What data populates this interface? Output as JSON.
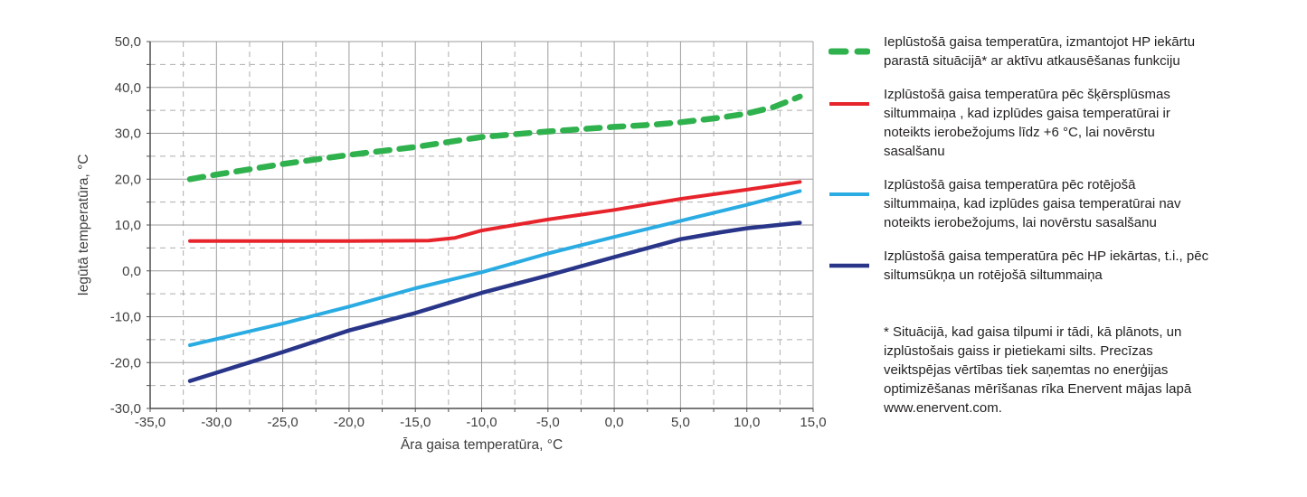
{
  "page": {
    "background": "#ffffff"
  },
  "chart": {
    "x_tick_labels": [
      "-35,0",
      "-30,0",
      "-25,0",
      "-20,0",
      "-15,0",
      "-10,0",
      "-5,0",
      "0,0",
      "5,0",
      "10,0",
      "15,0"
    ],
    "y_tick_labels": [
      "50,0",
      "40,0",
      "30,0",
      "20,0",
      "10,0",
      "0,0",
      "-10,0",
      "-20,0",
      "-30,0"
    ]
  },
  "chart_data": {
    "type": "line",
    "title": "",
    "xlabel": "Āra gaisa temperatūra, °C",
    "ylabel": "Iegūtā temperatūra, °C",
    "xlim": [
      -35,
      15
    ],
    "ylim": [
      -30,
      50
    ],
    "x_ticks": [
      -35,
      -30,
      -25,
      -20,
      -15,
      -10,
      -5,
      0,
      5,
      10,
      15
    ],
    "y_ticks": [
      50,
      40,
      30,
      20,
      10,
      0,
      -10,
      -20,
      -30
    ],
    "x_minor_step": 2.5,
    "y_minor_step": 5,
    "grid": "major solid, minor dashed",
    "legend_position": "right",
    "grid_major_color": "#9c9c9c",
    "grid_minor_color": "#aeaeae",
    "axis_color": "#4d4d4d",
    "tick_label_color": "#3f3f3f",
    "series": [
      {
        "name": "Ieplūstošā gaisa temperatūra, izmantojot HP iekārtu parastā situācijā* ar aktīvu atkausēšanas funkciju",
        "color": "#2fb14d",
        "style": "dashed",
        "width": 6.5,
        "points": [
          [
            -32,
            20
          ],
          [
            -30,
            21
          ],
          [
            -25,
            23.3
          ],
          [
            -20,
            25.3
          ],
          [
            -15,
            27
          ],
          [
            -10,
            29.2
          ],
          [
            -5,
            30.4
          ],
          [
            0,
            31.4
          ],
          [
            3,
            31.9
          ],
          [
            5,
            32.4
          ],
          [
            8,
            33.4
          ],
          [
            10,
            34.3
          ],
          [
            12,
            35.7
          ],
          [
            14,
            38
          ]
        ]
      },
      {
        "name": "Izplūstošā gaisa temperatūra pēc šķērsplūsmas siltummaiņa, kad izplūdes gaisa temperatūrai ir noteikts ierobežojums līdz +6 °C, lai novērstu sasalšanu",
        "color": "#e7242c",
        "style": "solid",
        "width": 4,
        "points": [
          [
            -32,
            6.5
          ],
          [
            -20,
            6.5
          ],
          [
            -14,
            6.6
          ],
          [
            -12,
            7.2
          ],
          [
            -10,
            8.8
          ],
          [
            -5,
            11.2
          ],
          [
            0,
            13.3
          ],
          [
            5,
            15.7
          ],
          [
            10,
            17.7
          ],
          [
            14,
            19.4
          ]
        ]
      },
      {
        "name": "Izplūstošā gaisa temperatūra pēc rotējošā siltummaiņa, kad izplūdes gaisa temperatūrai nav noteikts ierobežojums, lai novērstu sasalšanu",
        "color": "#2aace3",
        "style": "solid",
        "width": 4,
        "points": [
          [
            -32,
            -16.2
          ],
          [
            -25,
            -11.5
          ],
          [
            -20,
            -7.8
          ],
          [
            -15,
            -3.8
          ],
          [
            -10,
            -0.3
          ],
          [
            -5,
            3.8
          ],
          [
            0,
            7.4
          ],
          [
            5,
            10.9
          ],
          [
            10,
            14.4
          ],
          [
            14,
            17.4
          ]
        ]
      },
      {
        "name": "Izplūstošā gaisa temperatūra pēc HP iekārtas, t.i., pēc siltumsūkņa un rotējošā siltummaiņa",
        "color": "#293589",
        "style": "solid",
        "width": 4.5,
        "points": [
          [
            -32,
            -24
          ],
          [
            -25,
            -17.7
          ],
          [
            -20,
            -13
          ],
          [
            -15,
            -9.2
          ],
          [
            -10,
            -4.8
          ],
          [
            -5,
            -1
          ],
          [
            0,
            3
          ],
          [
            5,
            6.9
          ],
          [
            8,
            8.4
          ],
          [
            10,
            9.3
          ],
          [
            14,
            10.5
          ]
        ]
      }
    ]
  },
  "legend": {
    "items": [
      {
        "label": "Ieplūstošā gaisa temperatūra, izmantojot HP iekārtu parastā situācijā* ar aktīvu atkausēšanas funkciju",
        "color": "#2fb14d",
        "style": "dashed"
      },
      {
        "label": "Izplūstošā gaisa temperatūra pēc šķērsplūsmas siltummaiņa , kad izplūdes gaisa temperatūrai ir noteikts ierobežojums līdz +6 °C, lai novērstu sasalšanu",
        "color": "#e7242c",
        "style": "solid"
      },
      {
        "label": "Izplūstošā gaisa temperatūra pēc rotējošā siltummaiņa, kad izplūdes gaisa temperatūrai nav noteikts ierobežojums, lai novērstu sasalšanu",
        "color": "#2aace3",
        "style": "solid"
      },
      {
        "label": "Izplūstošā gaisa temperatūra pēc HP iekārtas, t.i., pēc siltumsūkņa un rotējošā siltummaiņa",
        "color": "#293589",
        "style": "solid"
      }
    ]
  },
  "footnote": {
    "text": "* Situācijā, kad gaisa tilpumi ir tādi, kā plānots, un izplūstošais gaiss ir pietiekami silts. Precīzas veiktspējas vērtības tiek saņemtas no enerģijas optimizēšanas mērīšanas rīka Enervent mājas lapā www.enervent.com."
  }
}
